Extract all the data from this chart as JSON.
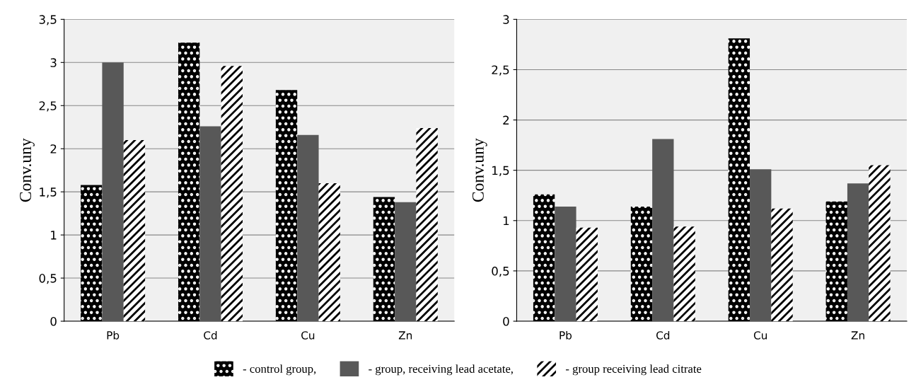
{
  "chart_data": [
    {
      "type": "bar",
      "ylabel": "Conv.uny",
      "categories": [
        "Pb",
        "Cd",
        "Cu",
        "Zn"
      ],
      "series": [
        {
          "name": "- control group,",
          "color": "#000000",
          "values": [
            1.58,
            3.23,
            2.68,
            1.44
          ]
        },
        {
          "name": "- group, receiving lead acetate,",
          "color": "#585858",
          "values": [
            3.0,
            2.26,
            2.16,
            1.38
          ]
        },
        {
          "name": "- group receiving lead citrate",
          "color": "#ffffff",
          "values": [
            2.1,
            2.96,
            1.6,
            2.24
          ]
        }
      ],
      "ylim": [
        0,
        3.5
      ],
      "yticks": [
        0,
        {
          "value": 0.5,
          "label": "0,5"
        },
        1,
        {
          "value": 1.5,
          "label": "1,5"
        },
        2,
        {
          "value": 2.5,
          "label": "2,5"
        },
        3,
        {
          "value": 3.5,
          "label": "3,5"
        }
      ],
      "grid": "y",
      "legend": "bottom"
    },
    {
      "type": "bar",
      "ylabel": "Conv.uny",
      "categories": [
        "Pb",
        "Cd",
        "Cu",
        "Zn"
      ],
      "series": [
        {
          "name": "- control group,",
          "color": "#000000",
          "values": [
            1.26,
            1.14,
            2.81,
            1.19
          ]
        },
        {
          "name": "- group, receiving lead acetate,",
          "color": "#585858",
          "values": [
            1.14,
            1.81,
            1.51,
            1.37
          ]
        },
        {
          "name": "- group receiving lead citrate",
          "color": "#ffffff",
          "values": [
            0.93,
            0.94,
            1.12,
            1.55
          ]
        }
      ],
      "ylim": [
        0,
        3
      ],
      "yticks": [
        0,
        {
          "value": 0.5,
          "label": "0,5"
        },
        1,
        {
          "value": 1.5,
          "label": "1,5"
        },
        2,
        {
          "value": 2.5,
          "label": "2,5"
        },
        3
      ],
      "grid": "y",
      "legend": "bottom"
    }
  ]
}
